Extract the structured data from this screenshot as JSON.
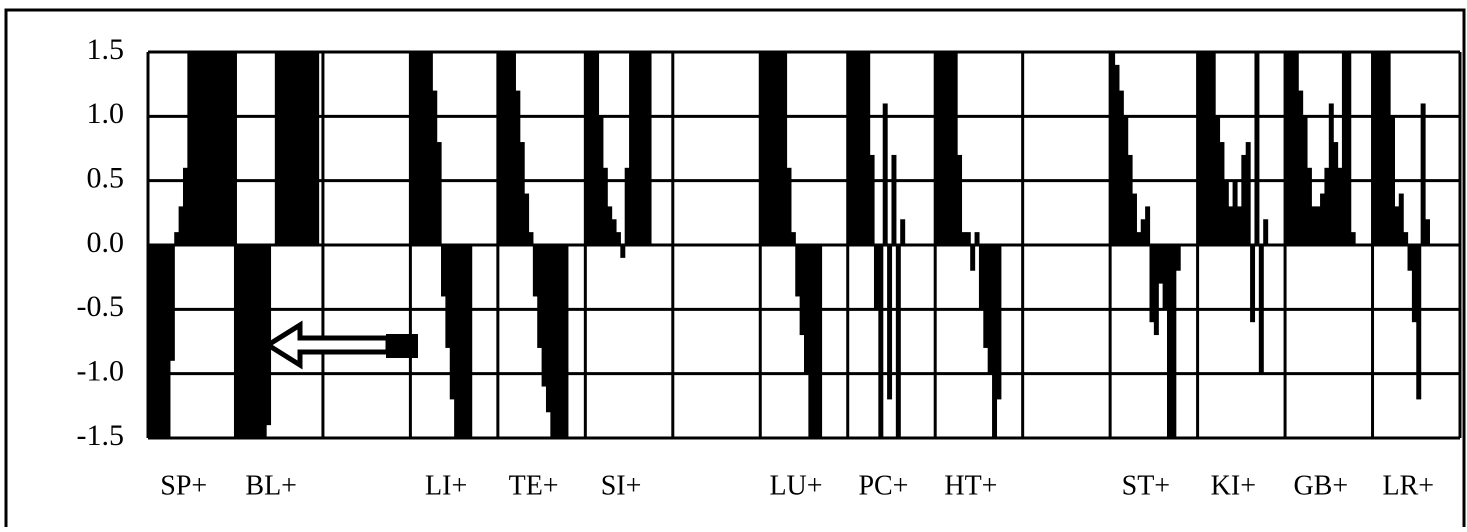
{
  "chart_data": {
    "type": "bar",
    "color": "#000000",
    "grid": true,
    "categories": [
      "SP+",
      "BL+",
      null,
      "LI+",
      "TE+",
      "SI+",
      null,
      "LU+",
      "PC+",
      "HT+",
      null,
      "ST+",
      "KI+",
      "GB+",
      "LR+"
    ],
    "values": [
      [
        -1.5,
        -1.5,
        -1.5,
        -1.5,
        -1.5,
        -0.9,
        0.1,
        0.3,
        0.6,
        1.5,
        1.5,
        1.5,
        1.5,
        1.5,
        1.5,
        1.5,
        1.5,
        1.5,
        1.5,
        1.5
      ],
      [
        -1.5,
        -1.5,
        -1.5,
        -1.5,
        -1.5,
        -1.5,
        -1.5,
        -1.4,
        0,
        1.5,
        1.5,
        1.5,
        1.5,
        1.5,
        1.5,
        1.5,
        1.5,
        1.5,
        1.5,
        0
      ],
      [
        0,
        0,
        0,
        0,
        0,
        0,
        0,
        0,
        0,
        0,
        0,
        0,
        0,
        0,
        0,
        0,
        0,
        0,
        0,
        0
      ],
      [
        1.5,
        1.5,
        1.5,
        1.5,
        1.5,
        1.2,
        0.8,
        -0.4,
        -0.8,
        -1.2,
        -1.5,
        -1.5,
        -1.5,
        -1.5,
        0,
        0,
        0,
        0,
        0,
        0
      ],
      [
        1.5,
        1.5,
        1.5,
        1.5,
        1.2,
        0.8,
        0.4,
        0.1,
        -0.4,
        -0.8,
        -1.1,
        -1.3,
        -1.5,
        -1.5,
        -1.5,
        -1.5,
        0,
        0,
        0,
        0
      ],
      [
        1.5,
        1.5,
        1.5,
        1.0,
        0.6,
        0.3,
        0.2,
        0.1,
        -0.1,
        0.6,
        1.5,
        1.5,
        1.5,
        1.5,
        1.5,
        0,
        0,
        0,
        0,
        0
      ],
      [
        0,
        0,
        0,
        0,
        0,
        0,
        0,
        0,
        0,
        0,
        0,
        0,
        0,
        0,
        0,
        0,
        0,
        0,
        0,
        0
      ],
      [
        1.5,
        1.5,
        1.5,
        1.5,
        1.5,
        1.5,
        0.6,
        0.1,
        -0.4,
        -0.7,
        -1.0,
        -1.5,
        -1.5,
        -1.5,
        0,
        0,
        0,
        0,
        0,
        0
      ],
      [
        1.5,
        1.5,
        1.5,
        1.5,
        1.5,
        0.7,
        -0.5,
        -1.5,
        1.1,
        -1.2,
        0.7,
        -1.5,
        0.2,
        0,
        0,
        0,
        0,
        0,
        0,
        0
      ],
      [
        1.5,
        1.5,
        1.5,
        1.5,
        1.5,
        0.7,
        0.1,
        0.1,
        -0.2,
        0.1,
        -0.5,
        -0.8,
        -1.0,
        -1.5,
        -1.2,
        0,
        0,
        0,
        0,
        0
      ],
      [
        0,
        0,
        0,
        0,
        0,
        0,
        0,
        0,
        0,
        0,
        0,
        0,
        0,
        0,
        0,
        0,
        0,
        0,
        0,
        0
      ],
      [
        1.5,
        1.4,
        1.2,
        1.0,
        0.7,
        0.4,
        0.1,
        0.2,
        0.3,
        -0.6,
        -0.7,
        -0.3,
        -0.5,
        -1.5,
        -1.5,
        -0.2,
        0,
        0,
        0,
        0
      ],
      [
        1.5,
        1.5,
        1.5,
        1.5,
        1.0,
        0.8,
        0.5,
        0.3,
        0.5,
        0.3,
        0.7,
        0.8,
        -0.6,
        1.5,
        -1.0,
        0.2,
        0,
        0,
        0,
        0
      ],
      [
        1.5,
        1.5,
        1.5,
        1.2,
        1.0,
        0.6,
        0.3,
        0.3,
        0.4,
        0.6,
        1.1,
        0.8,
        0.6,
        1.5,
        1.5,
        0.1,
        0,
        0,
        0,
        0
      ],
      [
        1.5,
        1.5,
        1.5,
        1.5,
        1.0,
        0.3,
        0.4,
        0.1,
        -0.2,
        -0.6,
        -1.2,
        1.1,
        0.2,
        0,
        0,
        0,
        0,
        0,
        0,
        0
      ]
    ],
    "ylim": [
      -1.5,
      1.5
    ],
    "yticks": [
      1.5,
      {
        "value": 1,
        "label": "1.0"
      },
      0.5,
      {
        "value": 0,
        "label": "0.0"
      },
      -0.5,
      {
        "value": -1,
        "label": "-1.0"
      },
      -1.5
    ]
  }
}
